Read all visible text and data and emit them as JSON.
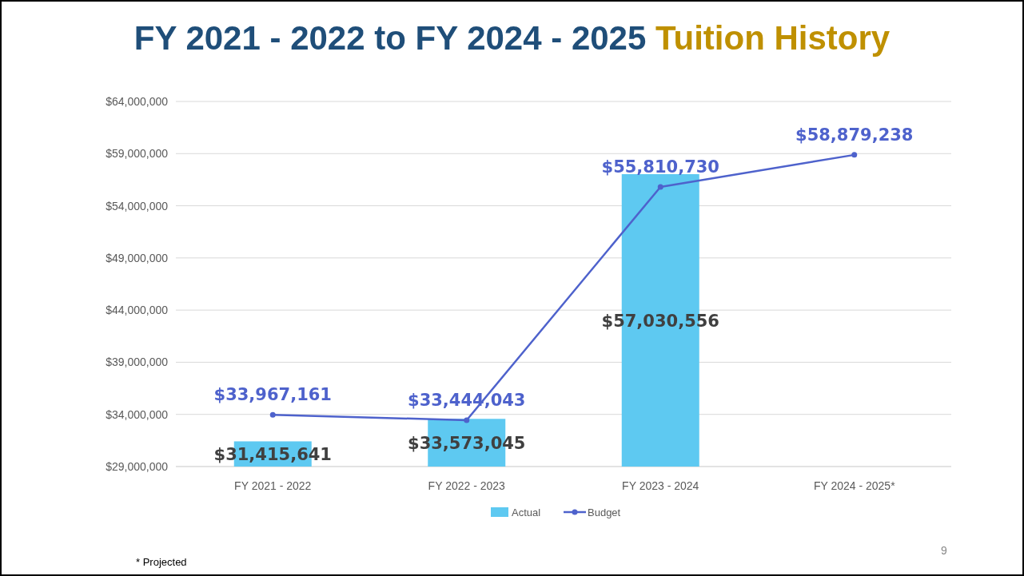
{
  "chart_data": {
    "type": "bar",
    "title": "FY 2021 - 2022 to FY 2024 - 2025",
    "subtitle": "Tuition History",
    "categories": [
      "FY 2021 - 2022",
      "FY 2022 - 2023",
      "FY 2023 - 2024",
      "FY 2024 - 2025*"
    ],
    "series": [
      {
        "name": "Actual",
        "color": "#5ec9f1",
        "values": [
          31415641,
          33573045,
          57030556,
          null
        ],
        "value_labels": [
          "$31,415,641",
          "$33,573,045",
          "$57,030,556",
          null
        ]
      },
      {
        "name": "Budget",
        "type": "line",
        "color": "#4e62cc",
        "marker": "circle",
        "values": [
          33967161,
          33444043,
          55810730,
          58879238
        ],
        "value_labels": [
          "$33,967,161",
          "$33,444,043",
          "$55,810,730",
          "$58,879,238"
        ]
      }
    ],
    "ylim": [
      29000000,
      64000000
    ],
    "yticks": [
      {
        "value": 29000000,
        "label": "$29,000,000"
      },
      {
        "value": 34000000,
        "label": "$34,000,000"
      },
      {
        "value": 39000000,
        "label": "$39,000,000"
      },
      {
        "value": 44000000,
        "label": "$44,000,000"
      },
      {
        "value": 49000000,
        "label": "$49,000,000"
      },
      {
        "value": 54000000,
        "label": "$54,000,000"
      },
      {
        "value": 59000000,
        "label": "$59,000,000"
      },
      {
        "value": 64000000,
        "label": "$64,000,000"
      }
    ],
    "grid": "y",
    "legend": "bottom",
    "annotations": [
      "* Projected",
      "9"
    ]
  }
}
